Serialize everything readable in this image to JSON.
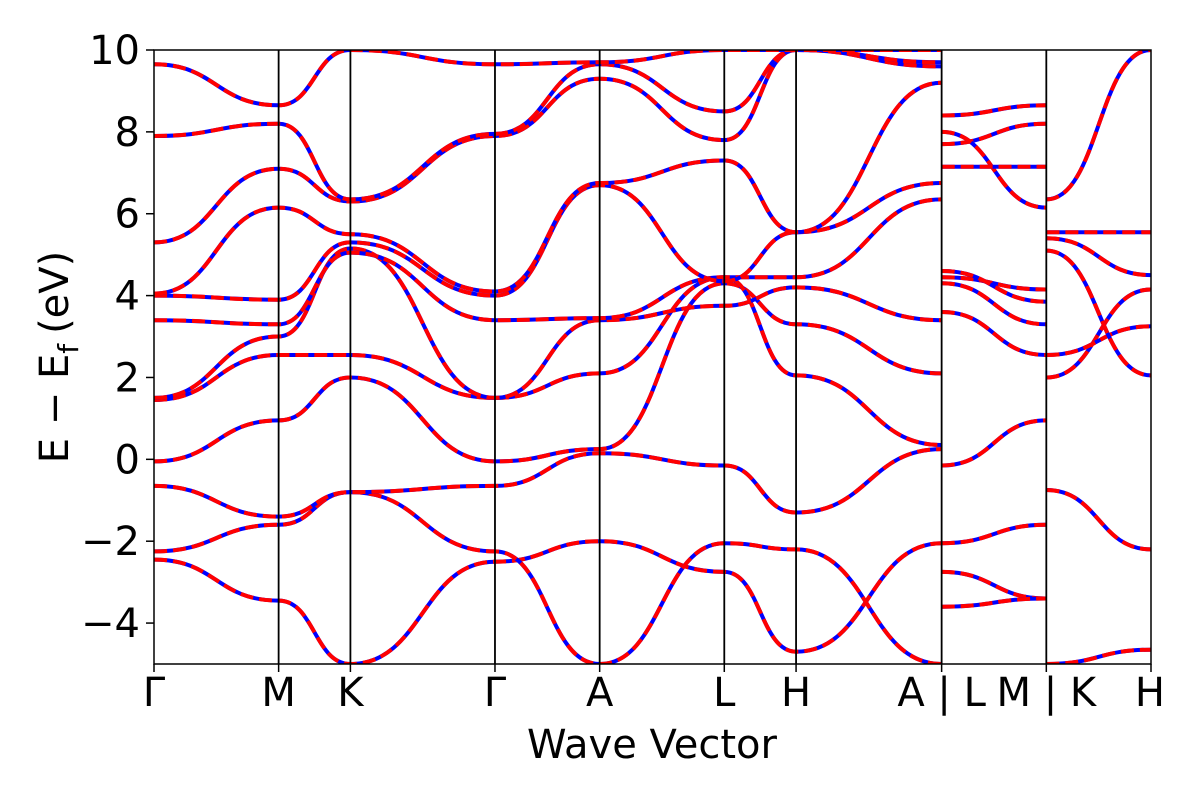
{
  "chart_data": {
    "type": "line",
    "title": "",
    "xlabel": "Wave Vector",
    "ylabel": "E − E_f (eV)",
    "ylabel_parts": {
      "main": "E − E",
      "sub": "f",
      "unit": "(eV)"
    },
    "ylim": [
      -5,
      10
    ],
    "yticks": [
      -4,
      -2,
      0,
      2,
      4,
      6,
      8,
      10
    ],
    "ytick_labels": [
      "−4",
      "−2",
      "0",
      "2",
      "4",
      "6",
      "8",
      "10"
    ],
    "xlim": [
      0,
      1
    ],
    "kpath_ticks": [
      {
        "x": 0.0,
        "label": "Γ"
      },
      {
        "x": 0.125,
        "label": "M"
      },
      {
        "x": 0.197,
        "label": "K"
      },
      {
        "x": 0.342,
        "label": "Γ"
      },
      {
        "x": 0.447,
        "label": "A"
      },
      {
        "x": 0.572,
        "label": "L"
      },
      {
        "x": 0.644,
        "label": "H"
      },
      {
        "x": 0.79,
        "label": "A | L"
      },
      {
        "x": 0.895,
        "label": "M | K"
      },
      {
        "x": 1.0,
        "label": "H"
      }
    ],
    "segment_breaks": [
      0.79,
      0.895
    ],
    "series_styles": [
      {
        "color": "#0000ff",
        "style": "solid"
      },
      {
        "color": "#ff0000",
        "style": "dashed"
      }
    ],
    "bands": [
      {
        "x": [
          0,
          0.125,
          0.197,
          0.342,
          0.447,
          0.572,
          0.644,
          0.79
        ],
        "y": [
          -2.45,
          -3.45,
          -5.0,
          -2.5,
          -2.0,
          -2.75,
          -4.7,
          -2.05
        ]
      },
      {
        "x": [
          0,
          0.125,
          0.197,
          0.342,
          0.447,
          0.572,
          0.644,
          0.79
        ],
        "y": [
          -2.25,
          -1.6,
          -0.8,
          -2.25,
          -5.0,
          -2.05,
          -2.2,
          -5.0
        ]
      },
      {
        "x": [
          0,
          0.125,
          0.197,
          0.342,
          0.447,
          0.572,
          0.644,
          0.79
        ],
        "y": [
          -0.65,
          -1.4,
          -0.8,
          -0.65,
          0.15,
          -0.15,
          -1.3,
          0.25
        ]
      },
      {
        "x": [
          0,
          0.125,
          0.197,
          0.342,
          0.447,
          0.572,
          0.644,
          0.79
        ],
        "y": [
          -0.05,
          0.95,
          2.0,
          -0.05,
          0.25,
          4.3,
          3.3,
          2.1
        ]
      },
      {
        "x": [
          0,
          0.125,
          0.197,
          0.342,
          0.447,
          0.572,
          0.644,
          0.79
        ],
        "y": [
          1.45,
          2.55,
          2.55,
          1.5,
          2.1,
          4.45,
          2.05,
          0.35
        ]
      },
      {
        "x": [
          0,
          0.125,
          0.197,
          0.342,
          0.447,
          0.572,
          0.644,
          0.79
        ],
        "y": [
          1.5,
          3.0,
          5.15,
          1.5,
          3.4,
          3.75,
          4.2,
          3.4
        ]
      },
      {
        "x": [
          0,
          0.125,
          0.197,
          0.342,
          0.447,
          0.572,
          0.644,
          0.79
        ],
        "y": [
          3.4,
          3.3,
          5.05,
          3.4,
          3.45,
          4.45,
          4.45,
          6.35
        ]
      },
      {
        "x": [
          0,
          0.125,
          0.197,
          0.342,
          0.447,
          0.572,
          0.644,
          0.79
        ],
        "y": [
          4.0,
          3.9,
          5.3,
          4.0,
          6.7,
          4.35,
          5.55,
          6.75
        ]
      },
      {
        "x": [
          0,
          0.125,
          0.197,
          0.342,
          0.447,
          0.572,
          0.644,
          0.79
        ],
        "y": [
          4.05,
          6.15,
          5.5,
          4.1,
          6.75,
          7.3,
          5.55,
          9.2
        ]
      },
      {
        "x": [
          0,
          0.125,
          0.197,
          0.342,
          0.447,
          0.572,
          0.644,
          0.79
        ],
        "y": [
          5.3,
          7.1,
          6.3,
          7.9,
          9.3,
          7.8,
          10.0,
          9.6
        ]
      },
      {
        "x": [
          0,
          0.125,
          0.197,
          0.342,
          0.447,
          0.572,
          0.644,
          0.79
        ],
        "y": [
          7.9,
          8.2,
          6.35,
          7.95,
          9.65,
          8.5,
          10.0,
          9.7
        ]
      },
      {
        "x": [
          0,
          0.125,
          0.197,
          0.342,
          0.447,
          0.572,
          0.644,
          0.79
        ],
        "y": [
          9.65,
          8.65,
          10.0,
          9.65,
          9.7,
          10.0,
          10.0,
          10.0
        ]
      },
      {
        "x": [
          0.79,
          0.895
        ],
        "y": [
          -2.05,
          -1.6
        ]
      },
      {
        "x": [
          0.79,
          0.895
        ],
        "y": [
          -2.75,
          -3.4
        ]
      },
      {
        "x": [
          0.79,
          0.895
        ],
        "y": [
          -3.6,
          -3.4
        ]
      },
      {
        "x": [
          0.79,
          0.895
        ],
        "y": [
          -0.15,
          0.95
        ]
      },
      {
        "x": [
          0.79,
          0.895
        ],
        "y": [
          3.6,
          2.55
        ]
      },
      {
        "x": [
          0.79,
          0.895
        ],
        "y": [
          4.3,
          3.3
        ]
      },
      {
        "x": [
          0.79,
          0.895
        ],
        "y": [
          4.45,
          4.15
        ]
      },
      {
        "x": [
          0.79,
          0.895
        ],
        "y": [
          4.6,
          3.85
        ]
      },
      {
        "x": [
          0.79,
          0.895
        ],
        "y": [
          7.7,
          8.2
        ]
      },
      {
        "x": [
          0.79,
          0.895
        ],
        "y": [
          8.0,
          6.15
        ]
      },
      {
        "x": [
          0.79,
          0.895
        ],
        "y": [
          8.4,
          8.65
        ]
      },
      {
        "x": [
          0.79,
          0.895
        ],
        "y": [
          7.15,
          7.15
        ]
      },
      {
        "x": [
          0.895,
          1.0
        ],
        "y": [
          -0.75,
          -2.2
        ]
      },
      {
        "x": [
          0.895,
          1.0
        ],
        "y": [
          -5.0,
          -4.65
        ]
      },
      {
        "x": [
          0.895,
          1.0
        ],
        "y": [
          2.0,
          4.15
        ]
      },
      {
        "x": [
          0.895,
          1.0
        ],
        "y": [
          2.55,
          3.25
        ]
      },
      {
        "x": [
          0.895,
          1.0
        ],
        "y": [
          5.1,
          2.05
        ]
      },
      {
        "x": [
          0.895,
          1.0
        ],
        "y": [
          5.4,
          4.5
        ]
      },
      {
        "x": [
          0.895,
          1.0
        ],
        "y": [
          5.55,
          5.55
        ]
      },
      {
        "x": [
          0.895,
          1.0
        ],
        "y": [
          6.35,
          10.0
        ]
      }
    ]
  }
}
